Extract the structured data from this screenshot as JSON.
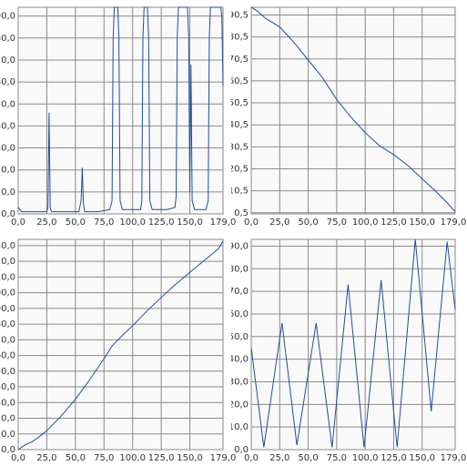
{
  "chart_data": [
    {
      "type": "line",
      "color": "#1f4e9a",
      "grid": true,
      "x": [
        0,
        3,
        10,
        20,
        25,
        26,
        27,
        28,
        29,
        40,
        53,
        55,
        56,
        57,
        58,
        70,
        80,
        82,
        83,
        84,
        87,
        88,
        89,
        91,
        100,
        107,
        108,
        109,
        110,
        113,
        114,
        115,
        117,
        130,
        137,
        138,
        139,
        140,
        148,
        149,
        150,
        151,
        152,
        154,
        164,
        166,
        167,
        168,
        177,
        178,
        179
      ],
      "values": [
        3,
        1,
        1,
        1,
        1,
        3,
        46,
        3,
        1,
        1,
        1,
        6,
        21,
        5,
        1,
        1,
        2,
        6,
        80,
        94,
        94,
        80,
        6,
        2,
        2,
        2,
        6,
        80,
        94,
        94,
        80,
        6,
        2,
        2,
        3,
        8,
        80,
        94,
        94,
        80,
        10,
        68,
        6,
        2,
        2,
        6,
        80,
        94,
        94,
        90,
        58
      ],
      "xlim": [
        0,
        179
      ],
      "xticks": [
        {
          "value": 0,
          "label": "0,0"
        },
        {
          "value": 25,
          "label": "25,0"
        },
        {
          "value": 50,
          "label": "50,0"
        },
        {
          "value": 75,
          "label": "75,0"
        },
        {
          "value": 100,
          "label": "100,0"
        },
        {
          "value": 125,
          "label": "125,0"
        },
        {
          "value": 150,
          "label": "150,0"
        },
        {
          "value": 179,
          "label": "179,0"
        }
      ],
      "ylim": [
        0,
        94
      ],
      "yticks": [
        {
          "value": 0,
          "label": "0,0"
        },
        {
          "value": 10,
          "label": "10,0"
        },
        {
          "value": 20,
          "label": "20,0"
        },
        {
          "value": 30,
          "label": "30,0"
        },
        {
          "value": 40,
          "label": "40,0"
        },
        {
          "value": 50,
          "label": "50,0"
        },
        {
          "value": 60,
          "label": "60,0"
        },
        {
          "value": 70,
          "label": "70,0"
        },
        {
          "value": 80,
          "label": "80,0"
        },
        {
          "value": 90,
          "label": "90,0"
        }
      ]
    },
    {
      "type": "line",
      "color": "#1f4e9a",
      "grid": true,
      "x": [
        0,
        6,
        12.5,
        25,
        37.5,
        50,
        62.5,
        75,
        87.5,
        100,
        112.5,
        125,
        137.5,
        150,
        162.5,
        172,
        179
      ],
      "values": [
        94,
        92,
        89,
        85,
        78,
        70,
        62,
        52,
        44,
        37,
        31,
        27,
        22,
        16,
        10,
        5,
        1
      ],
      "xlim": [
        0,
        179
      ],
      "xticks": [
        {
          "value": 0,
          "label": "0,0"
        },
        {
          "value": 25,
          "label": "25,0"
        },
        {
          "value": 50,
          "label": "50,0"
        },
        {
          "value": 75,
          "label": "75,0"
        },
        {
          "value": 100,
          "label": "100,0"
        },
        {
          "value": 125,
          "label": "125,0"
        },
        {
          "value": 150,
          "label": "150,0"
        },
        {
          "value": 179,
          "label": "179,0"
        }
      ],
      "ylim": [
        0,
        94
      ],
      "yticks": [
        {
          "value": 0.5,
          "label": "0,5"
        },
        {
          "value": 10.5,
          "label": "10,5"
        },
        {
          "value": 20.5,
          "label": "20,5"
        },
        {
          "value": 30.5,
          "label": "30,5"
        },
        {
          "value": 40.5,
          "label": "40,5"
        },
        {
          "value": 50.5,
          "label": "50,5"
        },
        {
          "value": 60.5,
          "label": "60,5"
        },
        {
          "value": 70.5,
          "label": "70,5"
        },
        {
          "value": 80.5,
          "label": "80,5"
        },
        {
          "value": 90.5,
          "label": "90,5"
        }
      ]
    },
    {
      "type": "line",
      "color": "#1f4e9a",
      "grid": true,
      "x": [
        0,
        6,
        12,
        18,
        25,
        37,
        50,
        62,
        75,
        82,
        90,
        100,
        112,
        125,
        137,
        150,
        160,
        170,
        175,
        179
      ],
      "values": [
        0,
        3,
        5,
        8,
        12,
        21,
        32,
        44,
        58,
        66,
        72,
        79,
        88,
        97,
        105,
        113,
        119,
        125,
        128,
        133
      ],
      "xlim": [
        0,
        179
      ],
      "xticks": [
        {
          "value": 0,
          "label": "0,0"
        },
        {
          "value": 25,
          "label": "25,0"
        },
        {
          "value": 50,
          "label": "50,0"
        },
        {
          "value": 75,
          "label": "75,0"
        },
        {
          "value": 100,
          "label": "100,0"
        },
        {
          "value": 125,
          "label": "125,0"
        },
        {
          "value": 150,
          "label": "150,0"
        },
        {
          "value": 179,
          "label": "179,0"
        }
      ],
      "ylim": [
        0,
        134
      ],
      "yticks": [
        {
          "value": 0,
          "label": "0,0"
        },
        {
          "value": 10,
          "label": "10,0"
        },
        {
          "value": 20,
          "label": "20,0"
        },
        {
          "value": 30,
          "label": "30,0"
        },
        {
          "value": 40,
          "label": "40,0"
        },
        {
          "value": 50,
          "label": "50,0"
        },
        {
          "value": 60,
          "label": "60,0"
        },
        {
          "value": 70,
          "label": "70,0"
        },
        {
          "value": 80,
          "label": "80,0"
        },
        {
          "value": 90,
          "label": "90,0"
        },
        {
          "value": 100,
          "label": "100,0"
        },
        {
          "value": 110,
          "label": "110,0"
        },
        {
          "value": 120,
          "label": "120,0"
        },
        {
          "value": 130,
          "label": "130,0"
        }
      ]
    },
    {
      "type": "line",
      "color": "#1f4e9a",
      "grid": true,
      "x": [
        0,
        11,
        27,
        40,
        57,
        71,
        85,
        99,
        114,
        128,
        144,
        158,
        172,
        179
      ],
      "values": [
        45,
        1,
        56,
        2,
        56,
        1,
        73,
        1,
        75,
        1,
        93,
        17,
        92,
        62
      ],
      "xlim": [
        0,
        179
      ],
      "xticks": [
        {
          "value": 0,
          "label": "0,0"
        },
        {
          "value": 25,
          "label": "25,0"
        },
        {
          "value": 50,
          "label": "50,0"
        },
        {
          "value": 75,
          "label": "75,0"
        },
        {
          "value": 100,
          "label": "100,0"
        },
        {
          "value": 125,
          "label": "125,0"
        },
        {
          "value": 150,
          "label": "150,0"
        },
        {
          "value": 179,
          "label": "179,0"
        }
      ],
      "ylim": [
        0,
        93
      ],
      "yticks": [
        {
          "value": 0,
          "label": "0,0"
        },
        {
          "value": 10,
          "label": "10,0"
        },
        {
          "value": 20,
          "label": "20,0"
        },
        {
          "value": 30,
          "label": "30,0"
        },
        {
          "value": 40,
          "label": "40,0"
        },
        {
          "value": 50,
          "label": "50,0"
        },
        {
          "value": 60,
          "label": "60,0"
        },
        {
          "value": 70,
          "label": "70,0"
        },
        {
          "value": 80,
          "label": "80,0"
        },
        {
          "value": 90,
          "label": "90,0"
        }
      ]
    }
  ]
}
